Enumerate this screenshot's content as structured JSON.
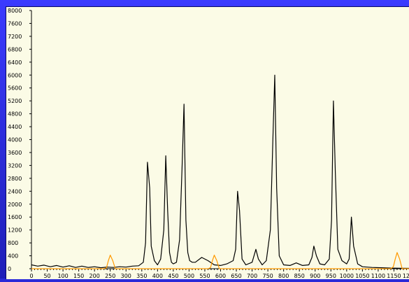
{
  "chart_data": {
    "type": "line",
    "title": "",
    "xlabel": "",
    "ylabel": "",
    "xlim": [
      0,
      1200
    ],
    "ylim": [
      0,
      8000
    ],
    "x_ticks": [
      0,
      50,
      100,
      150,
      200,
      250,
      300,
      350,
      400,
      450,
      500,
      550,
      600,
      650,
      700,
      750,
      800,
      850,
      900,
      950,
      1000,
      1050,
      1100,
      1150,
      1200
    ],
    "x_tick_labels": [
      "0",
      "50",
      "100",
      "150",
      "200",
      "250",
      "300",
      "350",
      "400",
      "450",
      "500",
      "550",
      "600",
      "650",
      "700",
      "750",
      "800",
      "850",
      "900",
      "950",
      "1000",
      "1050",
      "1100",
      "1150",
      "1200"
    ],
    "y_ticks": [
      0,
      400,
      800,
      1200,
      1600,
      2000,
      2400,
      2800,
      3200,
      3600,
      4000,
      4400,
      4800,
      5200,
      5600,
      6000,
      6400,
      6800,
      7200,
      7600,
      8000
    ],
    "y_tick_labels": [
      "0",
      "400",
      "800",
      "1200",
      "1600",
      "2000",
      "2400",
      "2800",
      "3200",
      "3600",
      "4000",
      "4400",
      "4800",
      "5200",
      "5600",
      "6000",
      "6400",
      "6800",
      "7200",
      "7600",
      "8000"
    ],
    "grid": false,
    "series": [
      {
        "color": "#000000",
        "x": [
          0,
          20,
          40,
          60,
          80,
          100,
          120,
          140,
          160,
          180,
          200,
          220,
          240,
          260,
          280,
          300,
          320,
          340,
          355,
          362,
          368,
          375,
          380,
          390,
          400,
          410,
          420,
          426,
          432,
          438,
          444,
          450,
          460,
          470,
          478,
          484,
          490,
          496,
          502,
          510,
          520,
          540,
          560,
          580,
          600,
          620,
          640,
          648,
          654,
          660,
          668,
          680,
          700,
          712,
          720,
          732,
          745,
          758,
          766,
          772,
          778,
          786,
          800,
          820,
          840,
          860,
          880,
          890,
          896,
          904,
          915,
          930,
          945,
          952,
          958,
          964,
          972,
          985,
          1000,
          1008,
          1015,
          1022,
          1035,
          1050,
          1080,
          1110,
          1140,
          1170,
          1200
        ],
        "y": [
          120,
          80,
          110,
          60,
          100,
          50,
          90,
          40,
          80,
          40,
          60,
          30,
          50,
          40,
          60,
          50,
          80,
          90,
          200,
          800,
          3300,
          2500,
          700,
          250,
          120,
          300,
          1200,
          3500,
          1800,
          500,
          200,
          150,
          200,
          900,
          3200,
          5100,
          1500,
          500,
          250,
          200,
          200,
          350,
          250,
          120,
          100,
          150,
          250,
          600,
          2400,
          1800,
          300,
          120,
          200,
          600,
          300,
          120,
          250,
          1200,
          4000,
          6000,
          2500,
          400,
          120,
          100,
          180,
          100,
          120,
          350,
          700,
          400,
          150,
          120,
          300,
          1500,
          5200,
          3000,
          600,
          250,
          150,
          300,
          1600,
          700,
          150,
          60,
          40,
          30,
          20,
          15,
          10
        ]
      },
      {
        "color": "#ff9900",
        "x": [
          0,
          230,
          238,
          244,
          250,
          258,
          266,
          560,
          568,
          574,
          580,
          588,
          596,
          1140,
          1148,
          1154,
          1160,
          1168,
          1176,
          1200
        ],
        "y": [
          0,
          0,
          30,
          250,
          420,
          250,
          0,
          0,
          30,
          250,
          420,
          250,
          0,
          0,
          60,
          300,
          500,
          300,
          0,
          0
        ]
      }
    ]
  }
}
